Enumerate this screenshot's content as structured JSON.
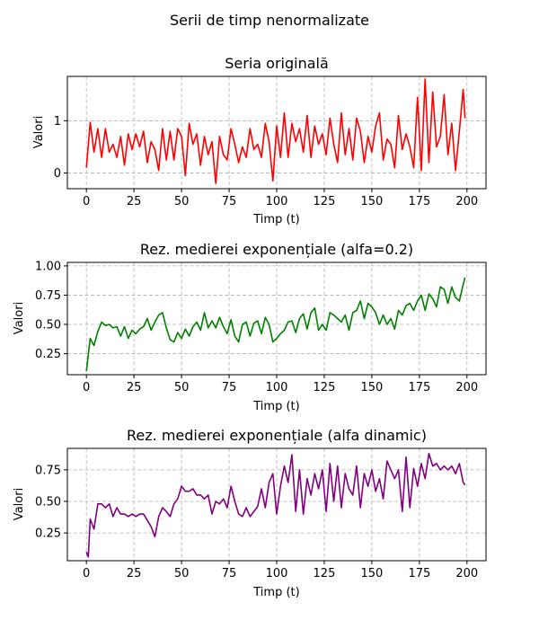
{
  "figure": {
    "suptitle": "Serii de timp nenormalizate"
  },
  "chart_data": [
    {
      "type": "line",
      "title": "Seria originală",
      "xlabel": "Timp (t)",
      "ylabel": "Valori",
      "xlim": [
        -10,
        210
      ],
      "ylim": [
        -0.3,
        1.85
      ],
      "xticks": [
        0,
        25,
        50,
        75,
        100,
        125,
        150,
        175,
        200
      ],
      "xtick_labels": [
        "0",
        "25",
        "50",
        "75",
        "100",
        "125",
        "150",
        "175",
        "200"
      ],
      "yticks": [
        0,
        1
      ],
      "ytick_labels": [
        "0",
        "1"
      ],
      "grid": true,
      "series": [
        {
          "color": "#ff0000",
          "x": [
            0,
            2,
            4,
            6,
            8,
            10,
            12,
            14,
            16,
            18,
            20,
            22,
            24,
            26,
            28,
            30,
            32,
            34,
            36,
            38,
            40,
            42,
            44,
            46,
            48,
            50,
            52,
            54,
            56,
            58,
            60,
            62,
            64,
            66,
            68,
            70,
            72,
            74,
            76,
            78,
            80,
            82,
            84,
            86,
            88,
            90,
            92,
            94,
            96,
            98,
            100,
            102,
            104,
            106,
            108,
            110,
            112,
            114,
            116,
            118,
            120,
            122,
            124,
            126,
            128,
            130,
            132,
            134,
            136,
            138,
            140,
            142,
            144,
            146,
            148,
            150,
            152,
            154,
            156,
            158,
            160,
            162,
            164,
            166,
            168,
            170,
            172,
            174,
            176,
            178,
            180,
            182,
            184,
            186,
            188,
            190,
            192,
            194,
            196,
            198,
            199
          ],
          "values": [
            0.1,
            0.97,
            0.4,
            0.85,
            0.3,
            0.85,
            0.4,
            0.55,
            0.3,
            0.7,
            0.15,
            0.75,
            0.45,
            0.75,
            0.5,
            0.8,
            0.2,
            0.6,
            0.45,
            0.05,
            0.85,
            0.25,
            0.8,
            0.25,
            0.85,
            0.7,
            -0.05,
            0.95,
            0.55,
            0.75,
            0.15,
            0.7,
            0.35,
            0.6,
            -0.2,
            0.7,
            0.35,
            0.25,
            0.85,
            0.55,
            0.2,
            0.5,
            0.3,
            0.85,
            0.45,
            0.55,
            0.3,
            0.95,
            0.6,
            -0.15,
            0.9,
            0.3,
            1.15,
            0.3,
            0.95,
            0.6,
            0.85,
            0.4,
            1.1,
            0.3,
            0.9,
            0.55,
            0.75,
            0.35,
            1.05,
            0.55,
            0.2,
            1.15,
            0.35,
            0.85,
            0.25,
            1.05,
            0.8,
            0.2,
            0.7,
            0.4,
            0.9,
            1.15,
            0.25,
            0.65,
            0.55,
            0.1,
            1.1,
            0.45,
            0.75,
            0.5,
            0.1,
            1.45,
            0.05,
            1.8,
            0.2,
            1.55,
            0.5,
            0.7,
            1.5,
            0.35,
            0.95,
            0.05,
            0.8,
            1.6,
            1.05
          ]
        }
      ]
    },
    {
      "type": "line",
      "title": "Rez. medierei exponențiale (alfa=0.2)",
      "xlabel": "Timp (t)",
      "ylabel": "Valori",
      "xlim": [
        -10,
        210
      ],
      "ylim": [
        0.07,
        1.03
      ],
      "xticks": [
        0,
        25,
        50,
        75,
        100,
        125,
        150,
        175,
        200
      ],
      "xtick_labels": [
        "0",
        "25",
        "50",
        "75",
        "100",
        "125",
        "150",
        "175",
        "200"
      ],
      "yticks": [
        0.25,
        0.5,
        0.75,
        1.0
      ],
      "ytick_labels": [
        "0.25",
        "0.50",
        "0.75",
        "1.00"
      ],
      "grid": true,
      "series": [
        {
          "color": "#008000",
          "x": [
            0,
            2,
            4,
            6,
            8,
            10,
            12,
            14,
            16,
            18,
            20,
            22,
            24,
            26,
            28,
            30,
            32,
            34,
            36,
            38,
            40,
            42,
            44,
            46,
            48,
            50,
            52,
            54,
            56,
            58,
            60,
            62,
            64,
            66,
            68,
            70,
            72,
            74,
            76,
            78,
            80,
            82,
            84,
            86,
            88,
            90,
            92,
            94,
            96,
            98,
            100,
            102,
            104,
            106,
            108,
            110,
            112,
            114,
            116,
            118,
            120,
            122,
            124,
            126,
            128,
            130,
            132,
            134,
            136,
            138,
            140,
            142,
            144,
            146,
            148,
            150,
            152,
            154,
            156,
            158,
            160,
            162,
            164,
            166,
            168,
            170,
            172,
            174,
            176,
            178,
            180,
            182,
            184,
            186,
            188,
            190,
            192,
            194,
            196,
            198,
            199
          ],
          "values": [
            0.1,
            0.38,
            0.32,
            0.44,
            0.52,
            0.49,
            0.5,
            0.47,
            0.48,
            0.4,
            0.48,
            0.38,
            0.45,
            0.42,
            0.46,
            0.48,
            0.55,
            0.45,
            0.52,
            0.58,
            0.6,
            0.47,
            0.37,
            0.35,
            0.43,
            0.38,
            0.46,
            0.4,
            0.48,
            0.52,
            0.45,
            0.6,
            0.47,
            0.53,
            0.47,
            0.56,
            0.48,
            0.42,
            0.54,
            0.4,
            0.35,
            0.5,
            0.52,
            0.4,
            0.51,
            0.53,
            0.42,
            0.56,
            0.5,
            0.35,
            0.38,
            0.42,
            0.45,
            0.52,
            0.53,
            0.43,
            0.55,
            0.59,
            0.46,
            0.6,
            0.64,
            0.45,
            0.5,
            0.45,
            0.6,
            0.58,
            0.55,
            0.52,
            0.58,
            0.45,
            0.6,
            0.62,
            0.7,
            0.55,
            0.68,
            0.65,
            0.6,
            0.5,
            0.58,
            0.5,
            0.55,
            0.46,
            0.62,
            0.58,
            0.66,
            0.68,
            0.62,
            0.7,
            0.75,
            0.62,
            0.76,
            0.72,
            0.65,
            0.82,
            0.8,
            0.68,
            0.82,
            0.73,
            0.7,
            0.84,
            0.9
          ]
        }
      ]
    },
    {
      "type": "line",
      "title": "Rez. medierei exponențiale (alfa dinamic)",
      "xlabel": "Timp (t)",
      "ylabel": "Valori",
      "xlim": [
        -10,
        210
      ],
      "ylim": [
        0.03,
        0.92
      ],
      "xticks": [
        0,
        25,
        50,
        75,
        100,
        125,
        150,
        175,
        200
      ],
      "xtick_labels": [
        "0",
        "25",
        "50",
        "75",
        "100",
        "125",
        "150",
        "175",
        "200"
      ],
      "yticks": [
        0.25,
        0.5,
        0.75
      ],
      "ytick_labels": [
        "0.25",
        "0.50",
        "0.75"
      ],
      "grid": true,
      "series": [
        {
          "color": "#800080",
          "x": [
            0,
            1,
            2,
            4,
            6,
            8,
            10,
            12,
            14,
            16,
            18,
            20,
            22,
            24,
            26,
            28,
            30,
            32,
            34,
            36,
            38,
            40,
            42,
            44,
            46,
            48,
            50,
            52,
            54,
            56,
            58,
            60,
            62,
            64,
            66,
            68,
            70,
            72,
            74,
            76,
            78,
            80,
            82,
            84,
            86,
            88,
            90,
            92,
            94,
            96,
            98,
            100,
            102,
            104,
            106,
            108,
            110,
            112,
            114,
            116,
            118,
            120,
            122,
            124,
            126,
            128,
            130,
            132,
            134,
            136,
            138,
            140,
            142,
            144,
            146,
            148,
            150,
            152,
            154,
            156,
            158,
            160,
            162,
            164,
            166,
            168,
            170,
            172,
            174,
            176,
            178,
            180,
            182,
            184,
            186,
            188,
            190,
            192,
            194,
            196,
            198,
            199
          ],
          "values": [
            0.1,
            0.06,
            0.36,
            0.28,
            0.48,
            0.48,
            0.45,
            0.48,
            0.38,
            0.45,
            0.4,
            0.4,
            0.38,
            0.4,
            0.38,
            0.4,
            0.4,
            0.35,
            0.3,
            0.22,
            0.38,
            0.45,
            0.42,
            0.38,
            0.48,
            0.52,
            0.62,
            0.58,
            0.58,
            0.6,
            0.55,
            0.55,
            0.52,
            0.55,
            0.4,
            0.5,
            0.48,
            0.52,
            0.45,
            0.62,
            0.5,
            0.4,
            0.38,
            0.45,
            0.38,
            0.42,
            0.46,
            0.6,
            0.45,
            0.65,
            0.72,
            0.4,
            0.62,
            0.78,
            0.65,
            0.87,
            0.42,
            0.75,
            0.4,
            0.68,
            0.55,
            0.72,
            0.6,
            0.75,
            0.42,
            0.8,
            0.5,
            0.78,
            0.45,
            0.72,
            0.6,
            0.55,
            0.78,
            0.45,
            0.72,
            0.62,
            0.75,
            0.58,
            0.68,
            0.52,
            0.82,
            0.75,
            0.68,
            0.75,
            0.42,
            0.85,
            0.45,
            0.76,
            0.62,
            0.8,
            0.68,
            0.88,
            0.78,
            0.8,
            0.75,
            0.78,
            0.75,
            0.78,
            0.72,
            0.8,
            0.65,
            0.63
          ]
        }
      ]
    }
  ]
}
